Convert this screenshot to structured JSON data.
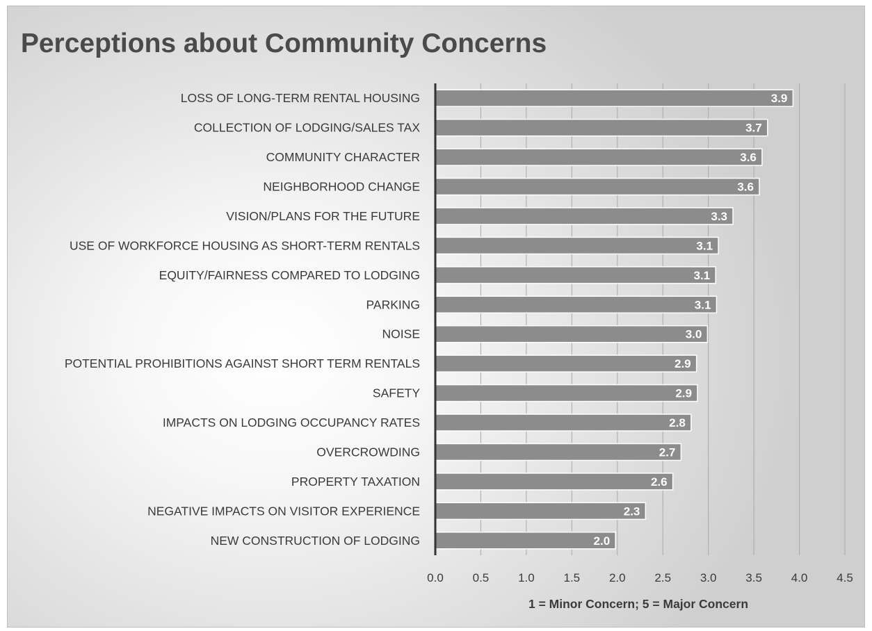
{
  "chart_data": {
    "type": "bar",
    "orientation": "horizontal",
    "title": "Perceptions about Community Concerns",
    "xlabel": "1 = Minor Concern; 5 = Major Concern",
    "ylabel": "",
    "xlim": [
      0,
      4.5
    ],
    "ticks": [
      "0.0",
      "0.5",
      "1.0",
      "1.5",
      "2.0",
      "2.5",
      "3.0",
      "3.5",
      "4.0",
      "4.5"
    ],
    "tick_values": [
      0,
      0.5,
      1.0,
      1.5,
      2.0,
      2.5,
      3.0,
      3.5,
      4.0,
      4.5
    ],
    "grid": "vertical",
    "legend": "none",
    "categories": [
      "LOSS OF LONG-TERM RENTAL HOUSING",
      "COLLECTION OF LODGING/SALES TAX",
      "COMMUNITY CHARACTER",
      "NEIGHBORHOOD CHANGE",
      "VISION/PLANS FOR THE FUTURE",
      "USE OF WORKFORCE HOUSING AS SHORT-TERM RENTALS",
      "EQUITY/FAIRNESS COMPARED TO LODGING",
      "PARKING",
      "NOISE",
      "POTENTIAL PROHIBITIONS AGAINST SHORT TERM RENTALS",
      "SAFETY",
      "IMPACTS ON LODGING OCCUPANCY RATES",
      "OVERCROWDING",
      "PROPERTY TAXATION",
      "NEGATIVE IMPACTS ON VISITOR EXPERIENCE",
      "NEW CONSTRUCTION OF LODGING"
    ],
    "values": [
      3.93,
      3.65,
      3.59,
      3.56,
      3.27,
      3.11,
      3.08,
      3.09,
      2.99,
      2.87,
      2.88,
      2.81,
      2.7,
      2.61,
      2.31,
      1.98
    ],
    "labels": [
      "3.9",
      "3.7",
      "3.6",
      "3.6",
      "3.3",
      "3.1",
      "3.1",
      "3.1",
      "3.0",
      "2.9",
      "2.9",
      "2.8",
      "2.7",
      "2.6",
      "2.3",
      "2.0"
    ],
    "colors": {
      "bar": "#8c8c8c",
      "bar_edge": "#ffffff",
      "grid": "#a9a9a9",
      "axis": "#333333",
      "text": "#3a3a3a",
      "title": "#4a4a4a",
      "value_label": "#ffffff"
    }
  }
}
